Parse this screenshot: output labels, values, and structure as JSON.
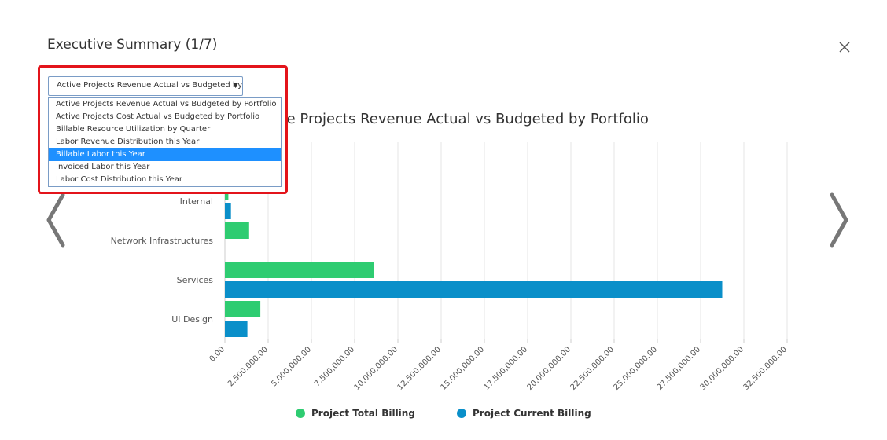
{
  "modal": {
    "title": "Executive Summary (1/7)"
  },
  "dropdown": {
    "selected": "Active Projects Revenue Actual vs Budgeted by Portfolio",
    "options": [
      "Active Projects Revenue Actual vs Budgeted by Portfolio",
      "Active Projects Cost Actual vs Budgeted by Portfolio",
      "Billable Resource Utilization by Quarter",
      "Labor Revenue Distribution this Year",
      "Billable Labor this Year",
      "Invoiced Labor this Year",
      "Labor Cost Distribution this Year"
    ],
    "highlighted_option": "Billable Labor this Year"
  },
  "colors": {
    "total_billing": "#2ecc71",
    "current_billing": "#0a8fc9",
    "highlight_border": "#e3141b",
    "selected_option_bg": "#1e90ff"
  },
  "chart_data": {
    "type": "bar",
    "orientation": "horizontal",
    "title": "Active Projects Revenue Actual vs Budgeted by Portfolio",
    "categories": [
      "Internal",
      "Network Infrastructures",
      "Services",
      "UI Design"
    ],
    "series": [
      {
        "name": "Project Total Billing",
        "values": [
          200000,
          1400000,
          8600000,
          2050000
        ]
      },
      {
        "name": "Project Current Billing",
        "values": [
          350000,
          0,
          28750000,
          1300000
        ]
      }
    ],
    "x_ticks": [
      "0.00",
      "2,500,000.00",
      "5,000,000.00",
      "7,500,000.00",
      "10,000,000.00",
      "12,500,000.00",
      "15,000,000.00",
      "17,500,000.00",
      "20,000,000.00",
      "22,500,000.00",
      "25,000,000.00",
      "27,500,000.00",
      "30,000,000.00",
      "32,500,000.00"
    ],
    "xlim": [
      0,
      32500000
    ],
    "grid": true,
    "legend_position": "bottom"
  }
}
